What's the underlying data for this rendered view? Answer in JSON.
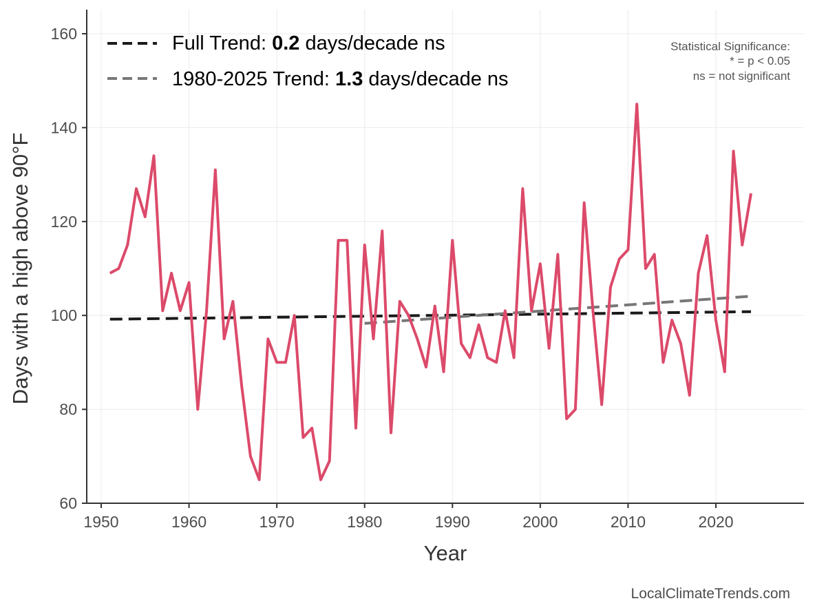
{
  "chart_data": {
    "type": "line",
    "xlabel": "Year",
    "ylabel": "Days with a high above 90°F",
    "xlim": [
      1947,
      2027.5
    ],
    "ylim": [
      60,
      165
    ],
    "xticks": [
      1950,
      1960,
      1970,
      1980,
      1990,
      2000,
      2010,
      2020
    ],
    "yticks": [
      60,
      80,
      100,
      120,
      140,
      160
    ],
    "grid": true,
    "legend_position": "top-left",
    "series": [
      {
        "name": "Days above 90°F",
        "color": "#dc4a6a",
        "x": [
          1951,
          1952,
          1953,
          1954,
          1955,
          1956,
          1957,
          1958,
          1959,
          1960,
          1961,
          1962,
          1963,
          1964,
          1965,
          1966,
          1967,
          1968,
          1969,
          1970,
          1971,
          1972,
          1973,
          1974,
          1975,
          1976,
          1977,
          1978,
          1979,
          1980,
          1981,
          1982,
          1983,
          1984,
          1985,
          1986,
          1987,
          1988,
          1989,
          1990,
          1991,
          1992,
          1993,
          1994,
          1995,
          1996,
          1997,
          1998,
          1999,
          2000,
          2001,
          2002,
          2003,
          2004,
          2005,
          2006,
          2007,
          2008,
          2009,
          2010,
          2011,
          2012,
          2013,
          2014,
          2015,
          2016,
          2017,
          2018,
          2019,
          2020,
          2021,
          2022,
          2023,
          2024
        ],
        "y": [
          109,
          110,
          115,
          127,
          121,
          134,
          101,
          109,
          101,
          107,
          80,
          101,
          131,
          95,
          103,
          85,
          70,
          65,
          95,
          90,
          90,
          100,
          74,
          76,
          65,
          69,
          116,
          116,
          76,
          115,
          95,
          118,
          75,
          103,
          100,
          95,
          89,
          102,
          88,
          116,
          94,
          91,
          98,
          91,
          90,
          101,
          91,
          127,
          101,
          111,
          93,
          113,
          78,
          80,
          124,
          101,
          81,
          106,
          112,
          114,
          145,
          110,
          113,
          90,
          99,
          94,
          83,
          109,
          117,
          99,
          88,
          135,
          115,
          126
        ]
      }
    ],
    "trends": [
      {
        "name": "Full Trend",
        "label_prefix": "Full Trend: ",
        "value": "0.2",
        "label_suffix": " days/decade ns",
        "color": "#1a1a1a",
        "x": [
          1951,
          2024
        ],
        "y": [
          99.2,
          100.8
        ]
      },
      {
        "name": "1980-2025 Trend",
        "label_prefix": "1980-2025 Trend: ",
        "value": "1.3",
        "label_suffix": " days/decade ns",
        "color": "#777777",
        "x": [
          1980,
          2024
        ],
        "y": [
          98.3,
          104.1
        ]
      }
    ],
    "annotation": [
      "Statistical Significance:",
      "* = p < 0.05",
      "ns = not significant"
    ],
    "credit": "LocalClimateTrends.com"
  }
}
